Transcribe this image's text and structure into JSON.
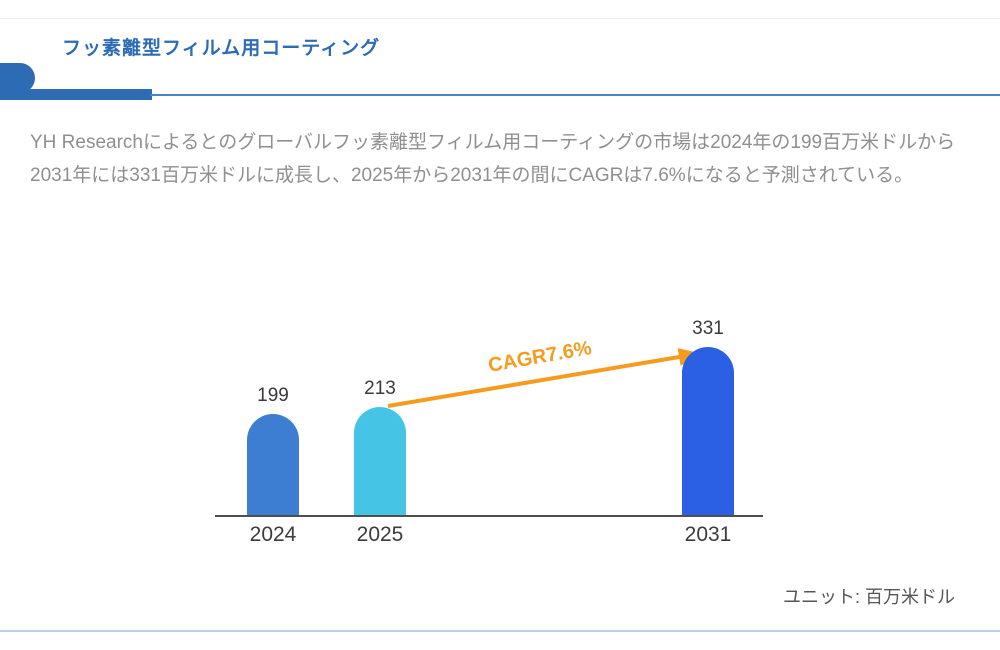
{
  "page": {
    "title": "フッ素離型フィルム用コーティング",
    "description": "YH Researchによるとのグローバルフッ素離型フィルム用コーティングの市場は2024年の199百万米ドルから2031年には331百万米ドルに成長し、2025年から2031年の間にCAGRは7.6%になると予測されている。",
    "colors": {
      "accent_blue": "#2d6cb5",
      "divider_blue": "#4d82c4",
      "bottom_rule_blue": "#4f86cd",
      "text_gray": "#8f8f8f"
    }
  },
  "chart_data": {
    "type": "bar",
    "title": "",
    "categories": [
      "2024",
      "2025",
      "2031"
    ],
    "values": [
      199,
      213,
      331
    ],
    "bar_colors": [
      "#3d7ed3",
      "#45c4e6",
      "#2b60e4"
    ],
    "value_labels_shown": true,
    "grid": false,
    "ylim": [
      0,
      380
    ],
    "annotation": {
      "label": "CAGR7.6%",
      "color": "#f79b1e",
      "from_category": "2025",
      "to_category": "2031"
    },
    "unit_note": "ユニット: 百万米ドル"
  }
}
